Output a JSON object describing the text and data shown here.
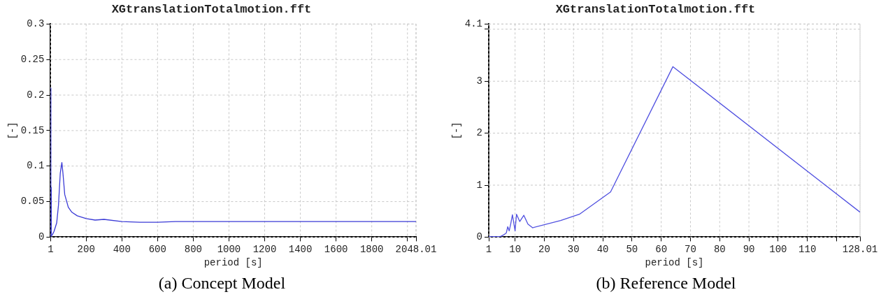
{
  "chart_data": [
    {
      "type": "line",
      "title": "XGtranslationTotalmotion.fft",
      "xlabel": "period [s]",
      "ylabel": "[-]",
      "annotations": [
        "(a) Concept Model"
      ],
      "xlim": [
        1,
        2048.01
      ],
      "xticks": [
        1,
        200,
        400,
        600,
        800,
        1000,
        1200,
        1400,
        1600,
        1800,
        {
          "value": 2000,
          "label": null
        },
        2048.01
      ],
      "ylim": [
        0,
        0.3
      ],
      "yticks": [
        0,
        0.05,
        0.1,
        0.15,
        0.2,
        0.25,
        0.3
      ],
      "grid": true,
      "legend": false,
      "marker": "none",
      "line_style": "solid",
      "series": [
        {
          "color": "#3b3bd6",
          "x": [
            1,
            2,
            3,
            4,
            5,
            10,
            20,
            35,
            45,
            55,
            64,
            70,
            80,
            100,
            120,
            150,
            200,
            250,
            300,
            400,
            500,
            600,
            700,
            1000,
            2048.01
          ],
          "values": [
            0,
            0.21,
            0.005,
            0.07,
            0.002,
            0.003,
            0.008,
            0.02,
            0.045,
            0.09,
            0.105,
            0.09,
            0.06,
            0.042,
            0.035,
            0.03,
            0.026,
            0.024,
            0.025,
            0.022,
            0.021,
            0.021,
            0.022,
            0.022,
            0.022
          ]
        }
      ]
    },
    {
      "type": "line",
      "title": "XGtranslationTotalmotion.fft",
      "xlabel": "period [s]",
      "ylabel": "[-]",
      "annotations": [
        "(b) Reference Model"
      ],
      "xlim": [
        1,
        128.01
      ],
      "xticks": [
        1,
        10,
        20,
        30,
        40,
        50,
        60,
        70,
        80,
        90,
        100,
        110,
        {
          "value": 120,
          "label": null
        },
        128.01
      ],
      "ylim": [
        0,
        4.1
      ],
      "yticks": [
        0,
        1,
        2,
        3,
        {
          "value": 4,
          "label": null
        },
        4.1
      ],
      "grid": true,
      "legend": false,
      "marker": "none",
      "line_style": "solid",
      "series": [
        {
          "color": "#5050e0",
          "x": [
            1,
            5,
            6,
            7,
            7.5,
            8,
            8.5,
            9.1,
            10,
            10.5,
            11.6,
            13,
            14.4,
            16,
            25.6,
            32,
            42.67,
            64,
            128.01
          ],
          "values": [
            0.01,
            0.01,
            0.04,
            0.08,
            0.2,
            0.12,
            0.25,
            0.43,
            0.12,
            0.44,
            0.3,
            0.42,
            0.25,
            0.18,
            0.32,
            0.44,
            0.87,
            3.28,
            0.48
          ]
        }
      ]
    }
  ]
}
